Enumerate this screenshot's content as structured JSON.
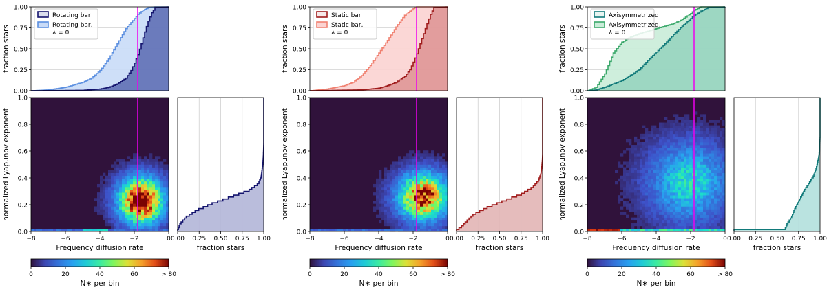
{
  "figure": {
    "shared": {
      "cdf_ylabel": "fraction stars",
      "heatmap_ylabel": "normalized Lyapunov exponent",
      "heatmap_xlabel": "Frequency diffusion rate",
      "side_xlabel": "fraction stars",
      "colorbar_label": "N∗ per bin",
      "colorbar_ticks": [
        "0",
        "20",
        "40",
        "60",
        "> 80"
      ],
      "cdf_yticks": [
        "0.00",
        "0.25",
        "0.50",
        "0.75",
        "1.00"
      ],
      "heat_yticks": [
        "0.0",
        "0.2",
        "0.4",
        "0.6",
        "0.8",
        "1.0"
      ],
      "heat_xticks": [
        "−8",
        "−6",
        "−4",
        "−2",
        "0"
      ],
      "side_xticks": [
        "0.00",
        "0.25",
        "0.50",
        "0.75",
        "1.00"
      ],
      "marker_line_x": -1.8,
      "marker_color": "#ee00ee"
    }
  },
  "chart_data": [
    {
      "type": "area",
      "panel": "Rotating bar",
      "colors": {
        "main": "#14146e",
        "fill": "#4a5aa8",
        "alt": "#5b8fe0",
        "alt_fill": "#c9dbf7",
        "side_fill": "#b3b6d8"
      },
      "legend": [
        "Rotating bar",
        "Rotating bar,",
        "λ = 0"
      ],
      "cdf_main": {
        "x": [
          -8,
          -5,
          -4,
          -3.5,
          -3,
          -2.5,
          -2.2,
          -2.0,
          -1.8,
          -1.6,
          -1.4,
          -1.2,
          -1.0,
          -0.8,
          0
        ],
        "y": [
          0,
          0.005,
          0.02,
          0.04,
          0.08,
          0.15,
          0.24,
          0.33,
          0.43,
          0.56,
          0.7,
          0.83,
          0.93,
          0.99,
          1
        ]
      },
      "cdf_lambda0": {
        "x": [
          -8,
          -7,
          -6,
          -5,
          -4.5,
          -4,
          -3.5,
          -3,
          -2.5,
          -2.0,
          -1.8,
          -1.5,
          -1.2,
          -0.8,
          0
        ],
        "y": [
          0,
          0.01,
          0.04,
          0.1,
          0.15,
          0.24,
          0.38,
          0.56,
          0.74,
          0.86,
          0.91,
          0.96,
          0.99,
          1,
          1
        ]
      },
      "side_cdf": {
        "lyap": [
          0,
          0.05,
          0.1,
          0.15,
          0.2,
          0.25,
          0.3,
          0.35,
          0.4,
          0.45,
          0.5,
          0.55,
          0.6,
          0.65,
          1.0
        ],
        "frac": [
          0,
          0.03,
          0.1,
          0.22,
          0.4,
          0.62,
          0.83,
          0.94,
          0.97,
          0.98,
          0.99,
          0.995,
          0.998,
          1.0,
          1.0
        ]
      },
      "blob": {
        "x": -1.6,
        "y": 0.23,
        "sx": 0.8,
        "sy": 0.11,
        "peak": 1.0
      }
    },
    {
      "type": "area",
      "panel": "Static bar",
      "colors": {
        "main": "#a01c1c",
        "fill": "#d98a8a",
        "alt": "#f08070",
        "alt_fill": "#fbd3d1",
        "side_fill": "#e2b5b5"
      },
      "legend": [
        "Static bar",
        "Static bar,",
        "λ = 0"
      ],
      "cdf_main": {
        "x": [
          -8,
          -5,
          -4,
          -3.5,
          -3,
          -2.5,
          -2.2,
          -2.0,
          -1.8,
          -1.6,
          -1.4,
          -1.2,
          -1.0,
          -0.8,
          0
        ],
        "y": [
          0,
          0.01,
          0.03,
          0.06,
          0.1,
          0.17,
          0.25,
          0.34,
          0.44,
          0.56,
          0.68,
          0.8,
          0.91,
          0.99,
          1
        ]
      },
      "cdf_lambda0": {
        "x": [
          -8,
          -7,
          -6,
          -5.5,
          -5,
          -4.5,
          -4,
          -3.5,
          -3,
          -2.5,
          -2.0,
          -1.8,
          -1.6,
          0
        ],
        "y": [
          0,
          0.02,
          0.06,
          0.1,
          0.18,
          0.3,
          0.45,
          0.6,
          0.76,
          0.9,
          0.98,
          1,
          1,
          1
        ]
      },
      "side_cdf": {
        "lyap": [
          0,
          0.03,
          0.07,
          0.12,
          0.17,
          0.22,
          0.27,
          0.32,
          0.37,
          0.42,
          0.47,
          0.52,
          0.57,
          1.0
        ],
        "frac": [
          0,
          0.06,
          0.12,
          0.2,
          0.35,
          0.55,
          0.75,
          0.88,
          0.95,
          0.98,
          0.99,
          0.997,
          1.0,
          1.0
        ]
      },
      "blob": {
        "x": -1.4,
        "y": 0.26,
        "sx": 0.9,
        "sy": 0.11,
        "peak": 0.85
      }
    },
    {
      "type": "area",
      "panel": "Axisymmetrized",
      "colors": {
        "main": "#117a7a",
        "fill": "#8ccfba",
        "alt": "#3aa86a",
        "alt_fill": "#c9ecd8",
        "side_fill": "#b3e0dd"
      },
      "legend": [
        "Axisymmetrized",
        "Axisymmetrized,",
        "λ = 0"
      ],
      "cdf_main": {
        "x": [
          -8,
          -7.5,
          -7,
          -6,
          -5,
          -4.5,
          -4,
          -3.5,
          -3,
          -2.5,
          -2.0,
          -1.8,
          -1.4,
          -1.0,
          0
        ],
        "y": [
          0,
          0.01,
          0.04,
          0.12,
          0.25,
          0.36,
          0.46,
          0.56,
          0.67,
          0.77,
          0.86,
          0.9,
          0.95,
          0.99,
          1
        ]
      },
      "cdf_lambda0": {
        "x": [
          -8,
          -7.5,
          -7,
          -6.5,
          -6,
          -5.5,
          -5,
          -4.5,
          -4,
          -3,
          -2.5,
          -2.0,
          -1.8,
          -1.4,
          0
        ],
        "y": [
          0,
          0.04,
          0.2,
          0.45,
          0.58,
          0.64,
          0.68,
          0.71,
          0.74,
          0.8,
          0.85,
          0.92,
          0.96,
          1,
          1
        ]
      },
      "side_cdf": {
        "lyap": [
          0,
          0.005,
          0.05,
          0.1,
          0.15,
          0.2,
          0.25,
          0.3,
          0.35,
          0.4,
          0.45,
          0.5,
          0.55,
          0.6,
          0.7,
          1.0
        ],
        "frac": [
          0,
          0.59,
          0.62,
          0.67,
          0.7,
          0.74,
          0.78,
          0.82,
          0.87,
          0.92,
          0.95,
          0.97,
          0.985,
          0.995,
          1.0,
          1.0
        ]
      },
      "blob": {
        "x": -2.1,
        "y": 0.37,
        "sx": 1.3,
        "sy": 0.17,
        "peak": 0.32
      }
    }
  ]
}
